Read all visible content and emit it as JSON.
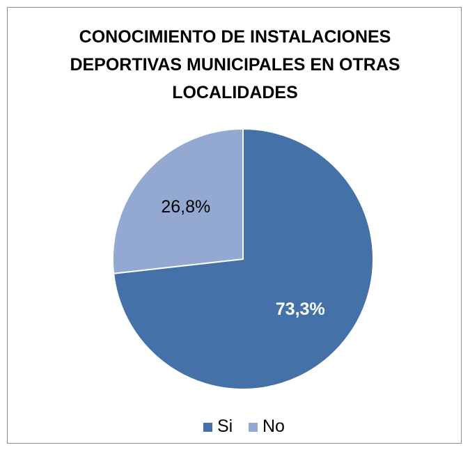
{
  "chart_data": {
    "type": "pie",
    "title": [
      "CONOCIMIENTO DE INSTALACIONES",
      "DEPORTIVAS MUNICIPALES EN OTRAS",
      "LOCALIDADES"
    ],
    "slices": [
      {
        "name": "Si",
        "value": 73.3,
        "label": "73,3%",
        "color": "#4472a8",
        "label_color": "#ffffff"
      },
      {
        "name": "No",
        "value": 26.8,
        "label": "26,8%",
        "color": "#94a9d2",
        "label_color": "#000000"
      }
    ],
    "legend_position": "bottom"
  }
}
